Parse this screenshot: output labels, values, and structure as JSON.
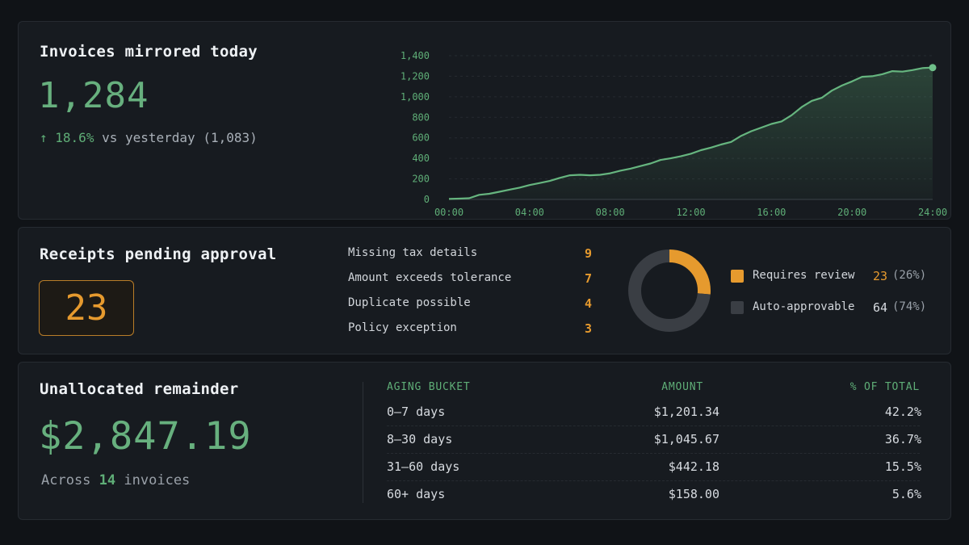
{
  "invoices": {
    "title": "Invoices mirrored today",
    "value": "1,284",
    "change_arrow": "↑",
    "change_pct": "18.6%",
    "change_text": "vs yesterday (1,083)",
    "chart_data": {
      "type": "area",
      "title": "",
      "xlabel": "",
      "ylabel": "",
      "x_ticks": [
        "00:00",
        "04:00",
        "08:00",
        "12:00",
        "16:00",
        "20:00",
        "24:00"
      ],
      "y_ticks": [
        "0",
        "200",
        "400",
        "600",
        "800",
        "1,000",
        "1,200",
        "1,400"
      ],
      "xlim": [
        0,
        24
      ],
      "ylim": [
        0,
        1400
      ],
      "grid": true,
      "series": [
        {
          "x": [
            0,
            0.5,
            1,
            1.5,
            2,
            2.5,
            3,
            3.5,
            4,
            4.5,
            5,
            5.5,
            6,
            6.5,
            7,
            7.5,
            8,
            8.5,
            9,
            9.5,
            10,
            10.5,
            11,
            11.5,
            12,
            12.5,
            13,
            13.5,
            14,
            14.5,
            15,
            15.5,
            16,
            16.5,
            17,
            17.5,
            18,
            18.5,
            19,
            19.5,
            20,
            20.5,
            21,
            21.5,
            22,
            22.5,
            23,
            23.5,
            24
          ],
          "y": [
            5,
            8,
            12,
            45,
            55,
            75,
            95,
            115,
            140,
            160,
            180,
            210,
            235,
            240,
            235,
            240,
            255,
            280,
            300,
            325,
            350,
            385,
            400,
            420,
            445,
            480,
            505,
            535,
            560,
            620,
            665,
            700,
            735,
            760,
            820,
            900,
            960,
            990,
            1060,
            1110,
            1150,
            1195,
            1200,
            1220,
            1250,
            1245,
            1260,
            1280,
            1284
          ]
        }
      ]
    }
  },
  "receipts": {
    "title": "Receipts pending approval",
    "value": "23",
    "reasons": [
      {
        "label": "Missing tax details",
        "count": "9"
      },
      {
        "label": "Amount exceeds tolerance",
        "count": "7"
      },
      {
        "label": "Duplicate possible",
        "count": "4"
      },
      {
        "label": "Policy exception",
        "count": "3"
      }
    ],
    "chart_data": {
      "type": "pie",
      "title": "",
      "series": [
        {
          "name": "Requires review",
          "value": 23,
          "pct_label": "(26%)",
          "color": "#e69a2e"
        },
        {
          "name": "Auto-approvable",
          "value": 64,
          "pct_label": "(74%)",
          "color": "#3a3e44"
        }
      ]
    },
    "legend": [
      {
        "label": "Requires review",
        "count": "23",
        "pct": "(26%)",
        "color": "#e69a2e"
      },
      {
        "label": "Auto-approvable",
        "count": "64",
        "pct": "(74%)",
        "color": "#3a3e44"
      }
    ]
  },
  "unallocated": {
    "title": "Unallocated remainder",
    "value": "$2,847.19",
    "sub_prefix": "Across",
    "sub_count": "14",
    "sub_suffix": "invoices",
    "table": {
      "headers": [
        "AGING BUCKET",
        "AMOUNT",
        "% OF TOTAL"
      ],
      "rows": [
        [
          "0–7 days",
          "$1,201.34",
          "42.2%"
        ],
        [
          "8–30 days",
          "$1,045.67",
          "36.7%"
        ],
        [
          "31–60 days",
          "$442.18",
          "15.5%"
        ],
        [
          "60+ days",
          "$158.00",
          "5.6%"
        ]
      ]
    }
  },
  "colors": {
    "accent_green": "#5fae77",
    "accent_orange": "#e69a2e",
    "background": "#101317",
    "card": "#171b20"
  }
}
